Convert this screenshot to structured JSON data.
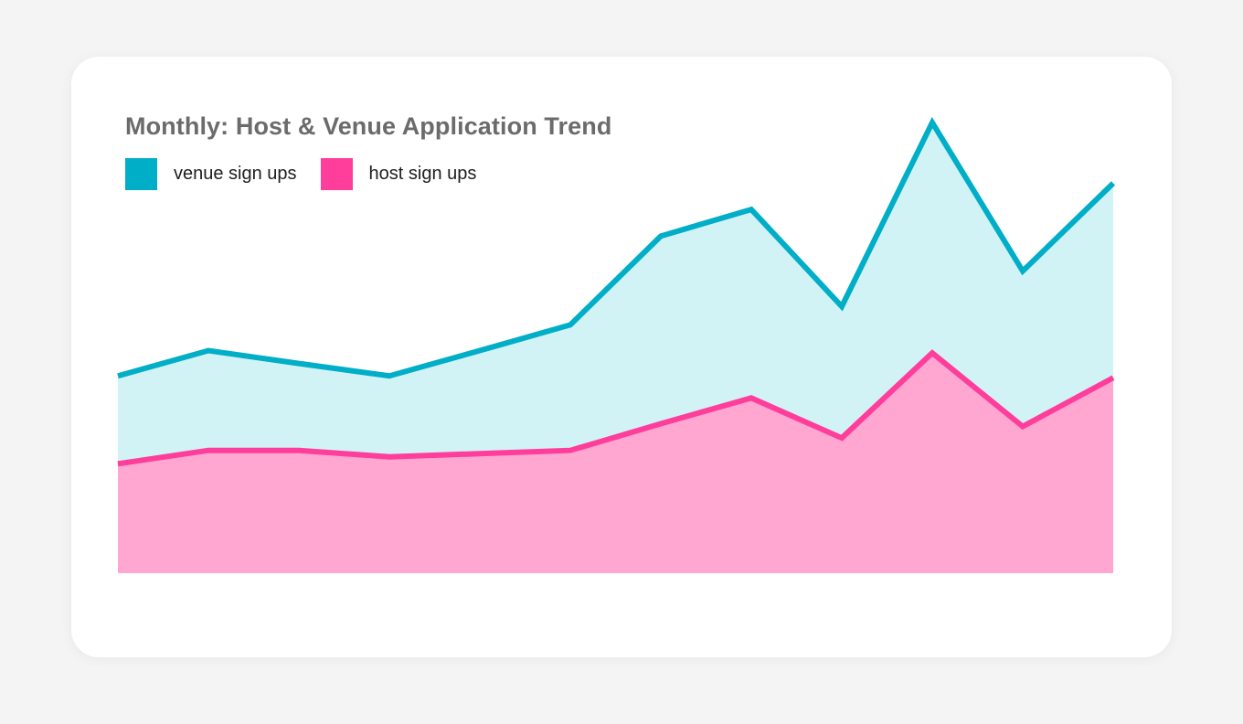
{
  "chart_data": {
    "type": "area",
    "title": "Monthly: Host & Venue Application Trend",
    "xlabel": "",
    "ylabel": "",
    "x": [
      1,
      2,
      3,
      4,
      5,
      6,
      7,
      8,
      9,
      10,
      11,
      12
    ],
    "ylim": [
      0,
      100
    ],
    "grid": false,
    "legend_position": "top-left",
    "series": [
      {
        "name": "venue sign ups",
        "color": "#00aec7",
        "fill": "#d2f3f6",
        "values": [
          42.9,
          48.4,
          45.6,
          42.9,
          48.4,
          54.0,
          73.3,
          79.1,
          58.0,
          98.0,
          65.7,
          84.8
        ]
      },
      {
        "name": "host sign ups",
        "color": "#ff3d9b",
        "fill": "#ffa6d1",
        "values": [
          23.8,
          26.7,
          26.7,
          25.3,
          26.0,
          26.7,
          32.5,
          38.1,
          29.4,
          47.9,
          31.9,
          42.5
        ]
      }
    ]
  }
}
